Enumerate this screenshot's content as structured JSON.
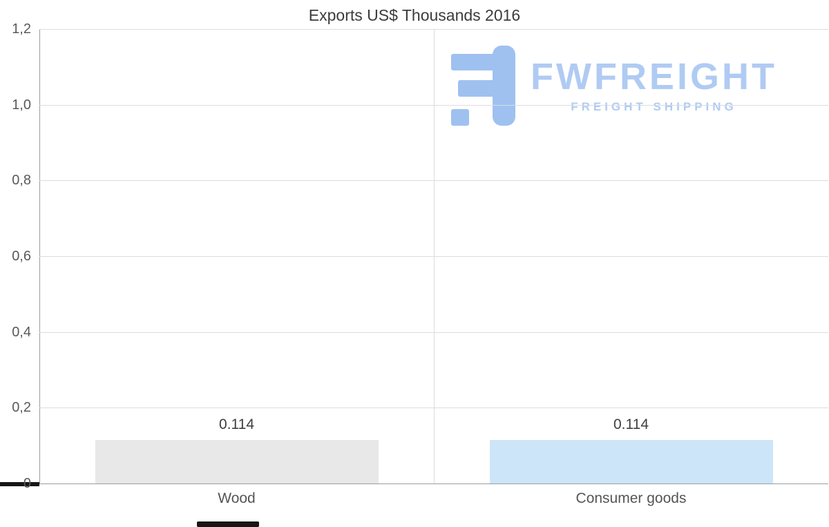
{
  "chart_data": {
    "type": "bar",
    "title": "Exports US$ Thousands 2016",
    "categories": [
      "Wood",
      "Consumer goods"
    ],
    "values": [
      0.114,
      0.114
    ],
    "value_labels": [
      "0.114",
      "0.114"
    ],
    "bar_colors": [
      "#e8e8e8",
      "#cde5f9"
    ],
    "ylim": [
      0,
      1.2
    ],
    "ytick_values": [
      1.2,
      1.0,
      0.8,
      0.6,
      0.4,
      0.2,
      0
    ],
    "ytick_labels": [
      "1,2",
      "1,0",
      "0,8",
      "0,6",
      "0,4",
      "0,2",
      "0"
    ],
    "grid": true,
    "legend": false,
    "xlabel": "",
    "ylabel": ""
  },
  "watermark": {
    "brand": "FWFREIGHT",
    "tagline": "FREIGHT SHIPPING",
    "text_color": "#b0cbf3",
    "icon_color": "#9fc1ef"
  }
}
